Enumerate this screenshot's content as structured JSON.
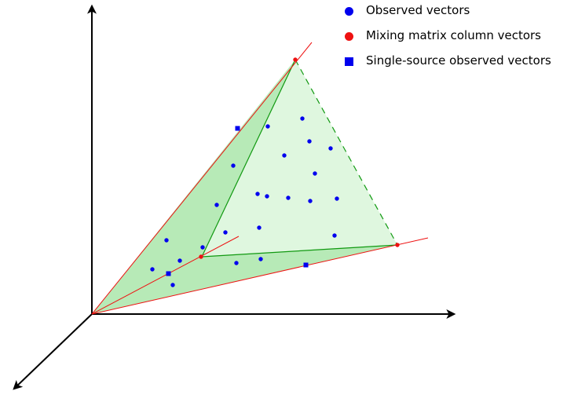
{
  "legend": {
    "items": [
      {
        "label": "Observed vectors",
        "marker": "circle",
        "color": "#0000ee"
      },
      {
        "label": "Mixing matrix column vectors",
        "marker": "circle",
        "color": "#ee1111"
      },
      {
        "label": "Single-source observed vectors",
        "marker": "square",
        "color": "#0000ee"
      }
    ]
  },
  "colors": {
    "axis": "#000000",
    "ray": "#ee1111",
    "cone_edge": "#119911",
    "cone_fill_dark": "#9fe39f",
    "cone_fill_light": "#dff7df",
    "observed": "#0000ee",
    "mixing": "#ee1111",
    "single_source": "#0000ee"
  }
}
